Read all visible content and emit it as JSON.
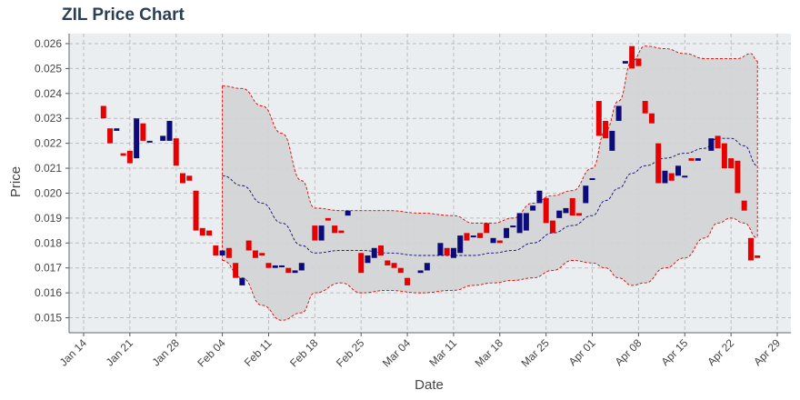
{
  "chart_data": {
    "type": "candlestick",
    "title": "ZIL Price Chart",
    "xlabel": "Date",
    "ylabel": "Price",
    "ylim": [
      0.0144,
      0.0264
    ],
    "x_tick_labels": [
      "Jan 14",
      "Jan 21",
      "Jan 28",
      "Feb 04",
      "Feb 11",
      "Feb 18",
      "Feb 25",
      "Mar 04",
      "Mar 11",
      "Mar 18",
      "Mar 25",
      "Apr 01",
      "Apr 08",
      "Apr 15",
      "Apr 22",
      "Apr 29"
    ],
    "y_ticks": [
      0.015,
      0.016,
      0.017,
      0.018,
      0.019,
      0.02,
      0.021,
      0.022,
      0.023,
      0.024,
      0.025,
      0.026
    ],
    "y_tick_labels": [
      "0.015",
      "0.016",
      "0.017",
      "0.018",
      "0.019",
      "0.020",
      "0.021",
      "0.022",
      "0.023",
      "0.024",
      "0.025",
      "0.026"
    ],
    "grid": true,
    "up_color": "#0b0b7a",
    "down_color": "#e60000",
    "band_fill": "#d3d4d5",
    "band_line_color": "#e60000",
    "ma_line_color": "#0b0b7a",
    "plot_background": "#ebeef0",
    "candles": [
      {
        "date": "Jan 17",
        "open": 0.0235,
        "close": 0.023
      },
      {
        "date": "Jan 18",
        "open": 0.0226,
        "close": 0.022
      },
      {
        "date": "Jan 19",
        "open": 0.0225,
        "close": 0.0226
      },
      {
        "date": "Jan 20",
        "open": 0.0216,
        "close": 0.0215
      },
      {
        "date": "Jan 21",
        "open": 0.0217,
        "close": 0.0212
      },
      {
        "date": "Jan 22",
        "open": 0.0214,
        "close": 0.023
      },
      {
        "date": "Jan 23",
        "open": 0.0228,
        "close": 0.0221
      },
      {
        "date": "Jan 24",
        "open": 0.0221,
        "close": 0.0221
      },
      {
        "date": "Jan 26",
        "open": 0.0221,
        "close": 0.0223
      },
      {
        "date": "Jan 27",
        "open": 0.0221,
        "close": 0.0229
      },
      {
        "date": "Jan 28",
        "open": 0.0222,
        "close": 0.0211
      },
      {
        "date": "Jan 29",
        "open": 0.0208,
        "close": 0.0204
      },
      {
        "date": "Jan 30",
        "open": 0.0207,
        "close": 0.0205
      },
      {
        "date": "Jan 31",
        "open": 0.0201,
        "close": 0.0185
      },
      {
        "date": "Feb 01",
        "open": 0.0186,
        "close": 0.0183
      },
      {
        "date": "Feb 02",
        "open": 0.0185,
        "close": 0.0183
      },
      {
        "date": "Feb 03",
        "open": 0.0179,
        "close": 0.0175
      },
      {
        "date": "Feb 04",
        "open": 0.0175,
        "close": 0.0177
      },
      {
        "date": "Feb 05",
        "open": 0.0178,
        "close": 0.0174
      },
      {
        "date": "Feb 06",
        "open": 0.0172,
        "close": 0.0166
      },
      {
        "date": "Feb 07",
        "open": 0.0163,
        "close": 0.0166
      },
      {
        "date": "Feb 08",
        "open": 0.0181,
        "close": 0.0177
      },
      {
        "date": "Feb 09",
        "open": 0.0177,
        "close": 0.0174
      },
      {
        "date": "Feb 10",
        "open": 0.0176,
        "close": 0.0175
      },
      {
        "date": "Feb 11",
        "open": 0.0172,
        "close": 0.017
      },
      {
        "date": "Feb 12",
        "open": 0.017,
        "close": 0.0171
      },
      {
        "date": "Feb 13",
        "open": 0.0171,
        "close": 0.0171
      },
      {
        "date": "Feb 14",
        "open": 0.017,
        "close": 0.0168
      },
      {
        "date": "Feb 15",
        "open": 0.0168,
        "close": 0.0169
      },
      {
        "date": "Feb 16",
        "open": 0.0169,
        "close": 0.0172
      },
      {
        "date": "Feb 18",
        "open": 0.0187,
        "close": 0.0181
      },
      {
        "date": "Feb 19",
        "open": 0.0181,
        "close": 0.0187
      },
      {
        "date": "Feb 20",
        "open": 0.019,
        "close": 0.0189
      },
      {
        "date": "Feb 21",
        "open": 0.0187,
        "close": 0.0184
      },
      {
        "date": "Feb 22",
        "open": 0.0185,
        "close": 0.0184
      },
      {
        "date": "Feb 23",
        "open": 0.0191,
        "close": 0.0193
      },
      {
        "date": "Feb 25",
        "open": 0.0176,
        "close": 0.0168
      },
      {
        "date": "Feb 26",
        "open": 0.0172,
        "close": 0.0175
      },
      {
        "date": "Feb 27",
        "open": 0.0174,
        "close": 0.0178
      },
      {
        "date": "Feb 28",
        "open": 0.0179,
        "close": 0.0175
      },
      {
        "date": "Mar 01",
        "open": 0.0173,
        "close": 0.0171
      },
      {
        "date": "Mar 02",
        "open": 0.0172,
        "close": 0.017
      },
      {
        "date": "Mar 03",
        "open": 0.017,
        "close": 0.0168
      },
      {
        "date": "Mar 04",
        "open": 0.0166,
        "close": 0.0163
      },
      {
        "date": "Mar 06",
        "open": 0.0168,
        "close": 0.0169
      },
      {
        "date": "Mar 07",
        "open": 0.0169,
        "close": 0.0172
      },
      {
        "date": "Mar 09",
        "open": 0.0175,
        "close": 0.018
      },
      {
        "date": "Mar 10",
        "open": 0.0178,
        "close": 0.0175
      },
      {
        "date": "Mar 11",
        "open": 0.0174,
        "close": 0.0178
      },
      {
        "date": "Mar 12",
        "open": 0.0176,
        "close": 0.0183
      },
      {
        "date": "Mar 13",
        "open": 0.0184,
        "close": 0.0181
      },
      {
        "date": "Mar 14",
        "open": 0.0183,
        "close": 0.0183
      },
      {
        "date": "Mar 15",
        "open": 0.0184,
        "close": 0.0182
      },
      {
        "date": "Mar 16",
        "open": 0.0188,
        "close": 0.0184
      },
      {
        "date": "Mar 17",
        "open": 0.018,
        "close": 0.0182
      },
      {
        "date": "Mar 18",
        "open": 0.0181,
        "close": 0.018
      },
      {
        "date": "Mar 19",
        "open": 0.0182,
        "close": 0.0186
      },
      {
        "date": "Mar 20",
        "open": 0.0187,
        "close": 0.0187
      },
      {
        "date": "Mar 21",
        "open": 0.0184,
        "close": 0.0192
      },
      {
        "date": "Mar 22",
        "open": 0.0185,
        "close": 0.0192
      },
      {
        "date": "Mar 23",
        "open": 0.0193,
        "close": 0.0195
      },
      {
        "date": "Mar 24",
        "open": 0.0196,
        "close": 0.0201
      },
      {
        "date": "Mar 25",
        "open": 0.0198,
        "close": 0.0188
      },
      {
        "date": "Mar 26",
        "open": 0.0189,
        "close": 0.0184
      },
      {
        "date": "Mar 27",
        "open": 0.019,
        "close": 0.0193
      },
      {
        "date": "Mar 28",
        "open": 0.0192,
        "close": 0.0194
      },
      {
        "date": "Mar 29",
        "open": 0.0198,
        "close": 0.0191
      },
      {
        "date": "Mar 30",
        "open": 0.0192,
        "close": 0.0191
      },
      {
        "date": "Mar 31",
        "open": 0.0196,
        "close": 0.0203
      },
      {
        "date": "Apr 01",
        "open": 0.0206,
        "close": 0.0206
      },
      {
        "date": "Apr 02",
        "open": 0.0237,
        "close": 0.0223
      },
      {
        "date": "Apr 03",
        "open": 0.0229,
        "close": 0.0222
      },
      {
        "date": "Apr 04",
        "open": 0.0217,
        "close": 0.0225
      },
      {
        "date": "Apr 05",
        "open": 0.0229,
        "close": 0.0235
      },
      {
        "date": "Apr 06",
        "open": 0.0252,
        "close": 0.0253
      },
      {
        "date": "Apr 07",
        "open": 0.0259,
        "close": 0.025
      },
      {
        "date": "Apr 08",
        "open": 0.0254,
        "close": 0.0251
      },
      {
        "date": "Apr 09",
        "open": 0.0237,
        "close": 0.0232
      },
      {
        "date": "Apr 10",
        "open": 0.0232,
        "close": 0.0228
      },
      {
        "date": "Apr 11",
        "open": 0.022,
        "close": 0.0204
      },
      {
        "date": "Apr 12",
        "open": 0.0204,
        "close": 0.0209
      },
      {
        "date": "Apr 13",
        "open": 0.0208,
        "close": 0.0205
      },
      {
        "date": "Apr 14",
        "open": 0.0207,
        "close": 0.0211
      },
      {
        "date": "Apr 15",
        "open": 0.0207,
        "close": 0.0207
      },
      {
        "date": "Apr 16",
        "open": 0.0214,
        "close": 0.0213
      },
      {
        "date": "Apr 17",
        "open": 0.0213,
        "close": 0.0214
      },
      {
        "date": "Apr 19",
        "open": 0.0217,
        "close": 0.0222
      },
      {
        "date": "Apr 20",
        "open": 0.0223,
        "close": 0.0218
      },
      {
        "date": "Apr 21",
        "open": 0.022,
        "close": 0.021
      },
      {
        "date": "Apr 22",
        "open": 0.0214,
        "close": 0.021
      },
      {
        "date": "Apr 23",
        "open": 0.0213,
        "close": 0.02
      },
      {
        "date": "Apr 24",
        "open": 0.0197,
        "close": 0.0193
      },
      {
        "date": "Apr 25",
        "open": 0.0182,
        "close": 0.0173
      },
      {
        "date": "Apr 26",
        "open": 0.0175,
        "close": 0.0174
      }
    ],
    "band_upper": [
      {
        "date": "Feb 04",
        "value": 0.0243
      },
      {
        "date": "Feb 07",
        "value": 0.0242
      },
      {
        "date": "Feb 10",
        "value": 0.0235
      },
      {
        "date": "Feb 13",
        "value": 0.0224
      },
      {
        "date": "Feb 16",
        "value": 0.0205
      },
      {
        "date": "Feb 18",
        "value": 0.0194
      },
      {
        "date": "Feb 22",
        "value": 0.0193
      },
      {
        "date": "Feb 25",
        "value": 0.0193
      },
      {
        "date": "Mar 01",
        "value": 0.0193
      },
      {
        "date": "Mar 06",
        "value": 0.0192
      },
      {
        "date": "Mar 11",
        "value": 0.0191
      },
      {
        "date": "Mar 14",
        "value": 0.0188
      },
      {
        "date": "Mar 17",
        "value": 0.0188
      },
      {
        "date": "Mar 20",
        "value": 0.019
      },
      {
        "date": "Mar 23",
        "value": 0.0196
      },
      {
        "date": "Mar 26",
        "value": 0.0199
      },
      {
        "date": "Mar 29",
        "value": 0.0201
      },
      {
        "date": "Apr 01",
        "value": 0.021
      },
      {
        "date": "Apr 03",
        "value": 0.0225
      },
      {
        "date": "Apr 05",
        "value": 0.0237
      },
      {
        "date": "Apr 07",
        "value": 0.0253
      },
      {
        "date": "Apr 09",
        "value": 0.0259
      },
      {
        "date": "Apr 12",
        "value": 0.0258
      },
      {
        "date": "Apr 15",
        "value": 0.0256
      },
      {
        "date": "Apr 18",
        "value": 0.0254
      },
      {
        "date": "Apr 21",
        "value": 0.0254
      },
      {
        "date": "Apr 23",
        "value": 0.0254
      },
      {
        "date": "Apr 25",
        "value": 0.0256
      },
      {
        "date": "Apr 26",
        "value": 0.0253
      }
    ],
    "band_lower": [
      {
        "date": "Feb 04",
        "value": 0.0173
      },
      {
        "date": "Feb 07",
        "value": 0.0166
      },
      {
        "date": "Feb 10",
        "value": 0.0155
      },
      {
        "date": "Feb 13",
        "value": 0.0149
      },
      {
        "date": "Feb 16",
        "value": 0.0152
      },
      {
        "date": "Feb 18",
        "value": 0.016
      },
      {
        "date": "Feb 22",
        "value": 0.0164
      },
      {
        "date": "Feb 25",
        "value": 0.016
      },
      {
        "date": "Mar 01",
        "value": 0.0161
      },
      {
        "date": "Mar 06",
        "value": 0.016
      },
      {
        "date": "Mar 11",
        "value": 0.0161
      },
      {
        "date": "Mar 14",
        "value": 0.0163
      },
      {
        "date": "Mar 17",
        "value": 0.0164
      },
      {
        "date": "Mar 20",
        "value": 0.0165
      },
      {
        "date": "Mar 23",
        "value": 0.0166
      },
      {
        "date": "Mar 26",
        "value": 0.0169
      },
      {
        "date": "Mar 29",
        "value": 0.0173
      },
      {
        "date": "Apr 01",
        "value": 0.0172
      },
      {
        "date": "Apr 03",
        "value": 0.017
      },
      {
        "date": "Apr 05",
        "value": 0.0166
      },
      {
        "date": "Apr 07",
        "value": 0.0163
      },
      {
        "date": "Apr 09",
        "value": 0.0164
      },
      {
        "date": "Apr 12",
        "value": 0.017
      },
      {
        "date": "Apr 15",
        "value": 0.0174
      },
      {
        "date": "Apr 18",
        "value": 0.0182
      },
      {
        "date": "Apr 20",
        "value": 0.0188
      },
      {
        "date": "Apr 22",
        "value": 0.019
      },
      {
        "date": "Apr 24",
        "value": 0.0188
      },
      {
        "date": "Apr 26",
        "value": 0.0182
      }
    ],
    "moving_average": [
      {
        "date": "Feb 04",
        "value": 0.0207
      },
      {
        "date": "Feb 07",
        "value": 0.0203
      },
      {
        "date": "Feb 10",
        "value": 0.0196
      },
      {
        "date": "Feb 13",
        "value": 0.0188
      },
      {
        "date": "Feb 16",
        "value": 0.0179
      },
      {
        "date": "Feb 18",
        "value": 0.0176
      },
      {
        "date": "Feb 22",
        "value": 0.0177
      },
      {
        "date": "Feb 25",
        "value": 0.0177
      },
      {
        "date": "Mar 01",
        "value": 0.0176
      },
      {
        "date": "Mar 06",
        "value": 0.0175
      },
      {
        "date": "Mar 11",
        "value": 0.0175
      },
      {
        "date": "Mar 14",
        "value": 0.0175
      },
      {
        "date": "Mar 17",
        "value": 0.0176
      },
      {
        "date": "Mar 20",
        "value": 0.0177
      },
      {
        "date": "Mar 23",
        "value": 0.018
      },
      {
        "date": "Mar 26",
        "value": 0.0184
      },
      {
        "date": "Mar 29",
        "value": 0.0187
      },
      {
        "date": "Apr 01",
        "value": 0.0191
      },
      {
        "date": "Apr 03",
        "value": 0.0197
      },
      {
        "date": "Apr 05",
        "value": 0.0202
      },
      {
        "date": "Apr 07",
        "value": 0.0208
      },
      {
        "date": "Apr 09",
        "value": 0.0211
      },
      {
        "date": "Apr 12",
        "value": 0.0214
      },
      {
        "date": "Apr 15",
        "value": 0.0216
      },
      {
        "date": "Apr 18",
        "value": 0.0218
      },
      {
        "date": "Apr 20",
        "value": 0.0222
      },
      {
        "date": "Apr 22",
        "value": 0.0222
      },
      {
        "date": "Apr 24",
        "value": 0.0219
      },
      {
        "date": "Apr 26",
        "value": 0.0211
      }
    ]
  }
}
